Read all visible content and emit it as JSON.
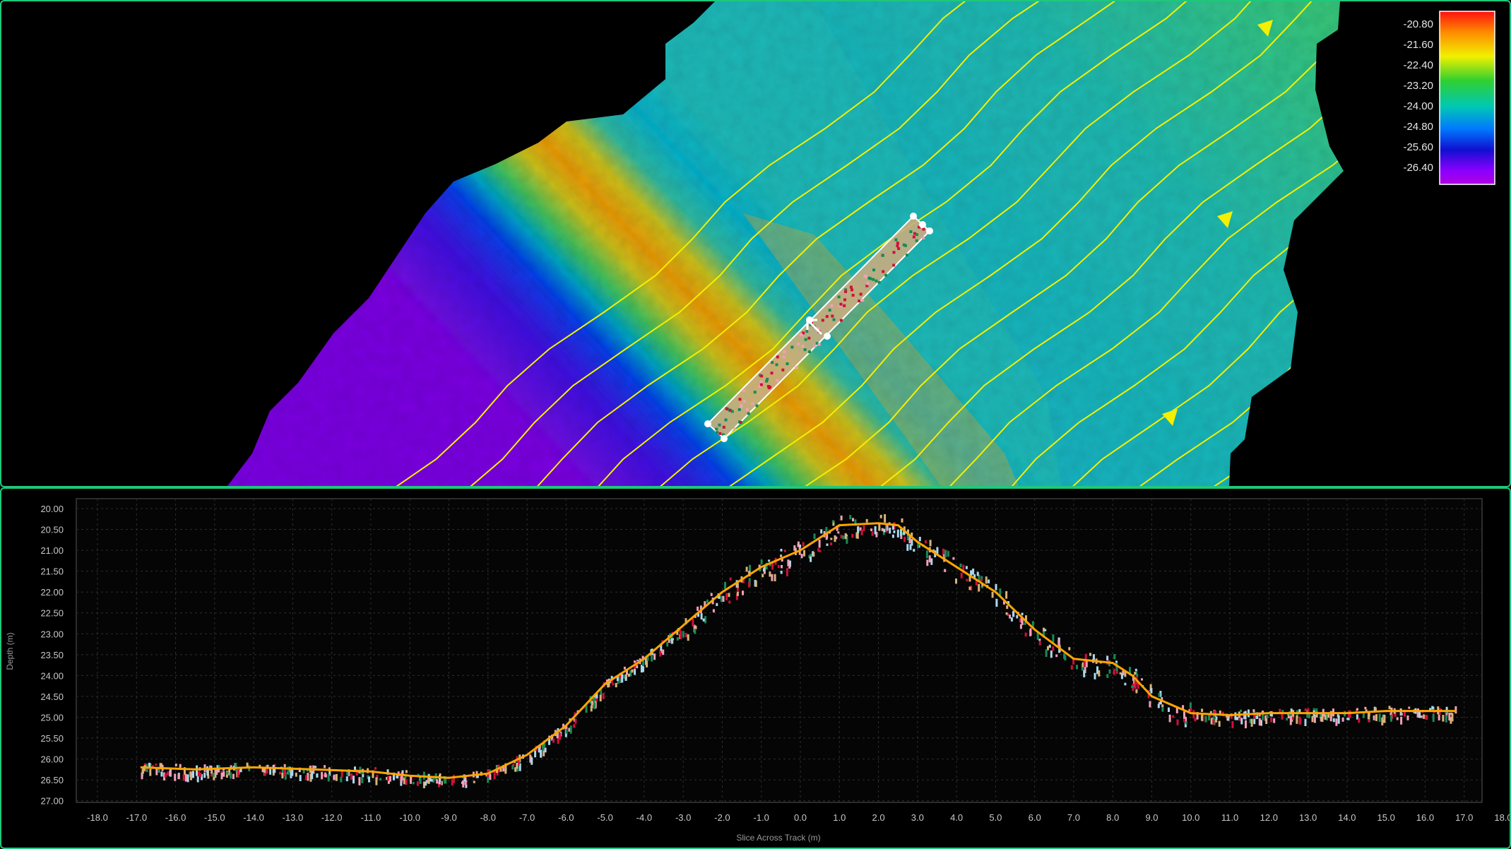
{
  "colors": {
    "border": "#1ec87a",
    "contour": "#f4f000",
    "median_line": "#ffa500",
    "series_tan": "#d6b37a",
    "series_red": "#d0103a",
    "series_green": "#178a55",
    "series_pink": "#f0a0b8",
    "series_lightblue": "#a8d8f0"
  },
  "map": {
    "legend": {
      "labels": [
        "-20.80",
        "-21.60",
        "-22.40",
        "-23.20",
        "-24.00",
        "-24.80",
        "-25.60",
        "-26.40"
      ],
      "range": [
        -20.8,
        -26.8
      ],
      "colormap": [
        "#ff1010",
        "#ff8a00",
        "#f2f000",
        "#30d030",
        "#00c8b4",
        "#0078ff",
        "#1010d0",
        "#8a00ff",
        "#b000e0"
      ]
    },
    "selection_tool": "slice-selection",
    "cursor_icon": "move-cursor-icon"
  },
  "chart_data": {
    "type": "scatter",
    "title": "",
    "xlabel": "Slice Across Track (m)",
    "ylabel": "Depth (m)",
    "xlim": [
      -18.0,
      18.0
    ],
    "ylim": [
      27.0,
      20.0
    ],
    "y_inverted": true,
    "grid": true,
    "x_ticks": [
      "-18.0",
      "-17.0",
      "-16.0",
      "-15.0",
      "-14.0",
      "-13.0",
      "-12.0",
      "-11.0",
      "-10.0",
      "-9.0",
      "-8.0",
      "-7.0",
      "-6.0",
      "-5.0",
      "-4.0",
      "-3.0",
      "-2.0",
      "-1.0",
      "0.0",
      "1.0",
      "2.0",
      "3.0",
      "4.0",
      "5.0",
      "6.0",
      "7.0",
      "8.0",
      "9.0",
      "10.0",
      "11.0",
      "12.0",
      "13.0",
      "14.0",
      "15.0",
      "16.0",
      "17.0",
      "18.0"
    ],
    "y_ticks": [
      "20.00",
      "20.50",
      "21.00",
      "21.50",
      "22.00",
      "22.50",
      "23.00",
      "23.50",
      "24.00",
      "24.50",
      "25.00",
      "25.50",
      "26.00",
      "26.50",
      "27.00"
    ],
    "profile_line": {
      "x": [
        -16.9,
        -15.5,
        -14.0,
        -12.5,
        -11.0,
        -10.0,
        -9.0,
        -8.0,
        -7.0,
        -6.0,
        -5.0,
        -4.0,
        -3.0,
        -2.0,
        -1.0,
        0.0,
        1.0,
        2.0,
        2.5,
        3.0,
        4.0,
        5.0,
        6.0,
        7.0,
        8.0,
        8.5,
        9.0,
        10.0,
        11.0,
        12.0,
        13.0,
        14.0,
        15.0,
        16.0,
        16.8
      ],
      "y": [
        26.2,
        26.25,
        26.2,
        26.25,
        26.3,
        26.4,
        26.45,
        26.35,
        25.9,
        25.2,
        24.2,
        23.6,
        22.8,
        22.0,
        21.4,
        21.0,
        20.4,
        20.35,
        20.4,
        20.8,
        21.4,
        22.0,
        22.9,
        23.6,
        23.7,
        24.0,
        24.5,
        24.9,
        24.95,
        24.9,
        24.9,
        24.9,
        24.85,
        24.85,
        24.85
      ]
    }
  }
}
